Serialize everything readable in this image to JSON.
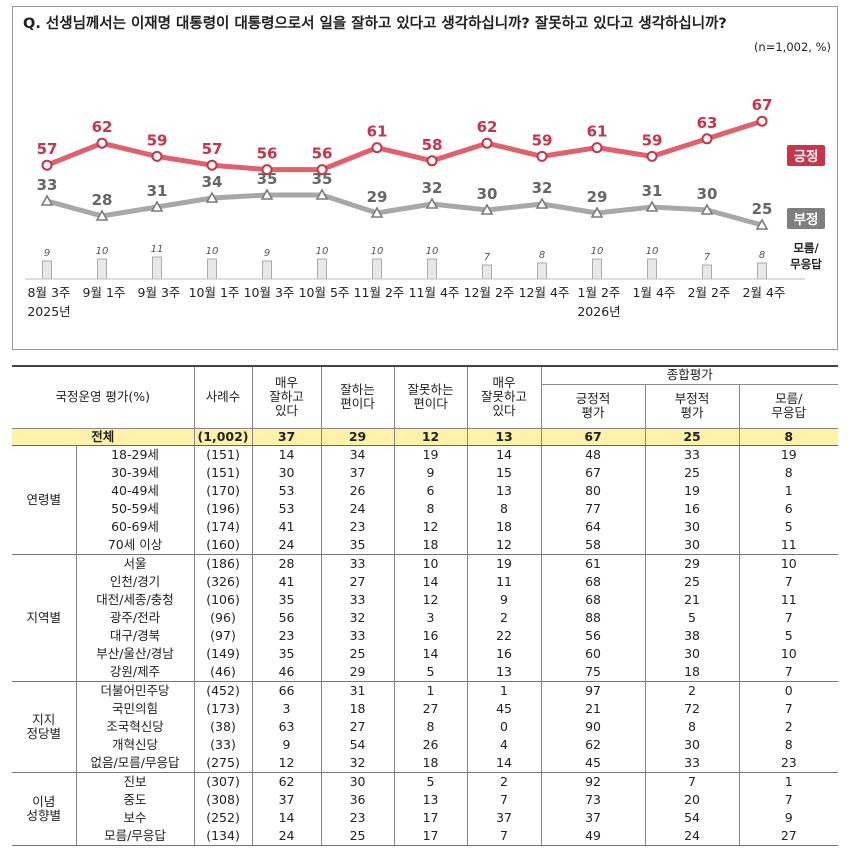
{
  "question": "Q. 선생님께서는 이재명 대통령이 대통령으로서 일을 잘하고 있다고 생각하십니까? 잘못하고 있다고 생각하십니까?",
  "note": "(n=1,002, %)",
  "colors": {
    "positive": "#c8344a",
    "positive_line": "#e0606e",
    "negative": "#7a7a7a",
    "negative_line": "#a8a8a8",
    "bar": "#e8e8e8",
    "bar_border": "#9a9a9a",
    "highlight": "#fff2a8"
  },
  "chart_data": {
    "type": "line",
    "title": "Q. 선생님께서는 이재명 대통령이 대통령으로서 일을 잘하고 있다고 생각하십니까? 잘못하고 있다고 생각하십니까?",
    "unit_note": "(n=1,002, %)",
    "categories": [
      "8월 3주",
      "9월 1주",
      "9월 3주",
      "10월 1주",
      "10월 3주",
      "10월 5주",
      "11월 2주",
      "11월 4주",
      "12월 2주",
      "12월 4주",
      "1월 2주",
      "1월 4주",
      "2월 2주",
      "2월 4주"
    ],
    "year_labels": [
      {
        "index": 0,
        "label": "2025년"
      },
      {
        "index": 10,
        "label": "2026년"
      }
    ],
    "series": [
      {
        "name": "긍정",
        "values": [
          57,
          62,
          59,
          57,
          56,
          56,
          61,
          58,
          62,
          59,
          61,
          59,
          63,
          67
        ]
      },
      {
        "name": "부정",
        "values": [
          33,
          28,
          31,
          34,
          35,
          35,
          29,
          32,
          30,
          32,
          29,
          31,
          30,
          25
        ]
      },
      {
        "name": "모름/무응답",
        "type": "bar",
        "values": [
          9,
          10,
          11,
          10,
          9,
          10,
          10,
          10,
          7,
          8,
          10,
          10,
          7,
          8
        ]
      }
    ],
    "legend": [
      "긍정",
      "부정",
      "모름/무응답"
    ]
  },
  "legend_dk": [
    "모름/",
    "무응답"
  ],
  "table": {
    "header": {
      "item": "국정운영 평가(%)",
      "n": "사례수",
      "c1": [
        "매우",
        "잘하고",
        "있다"
      ],
      "c2": [
        "잘하는",
        "편이다"
      ],
      "c3": [
        "잘못하는",
        "편이다"
      ],
      "c4": [
        "매우",
        "잘못하고",
        "있다"
      ],
      "summary": "종합평가",
      "s1": [
        "긍정적",
        "평가"
      ],
      "s2": [
        "부정적",
        "평가"
      ],
      "s3": [
        "모름/",
        "무응답"
      ]
    },
    "total": {
      "label": "전체",
      "n": "(1,002)",
      "vals": [
        "37",
        "29",
        "12",
        "13",
        "67",
        "25",
        "8"
      ]
    },
    "groups": [
      {
        "name": "연령별",
        "rows": [
          {
            "label": "18-29세",
            "n": "(151)",
            "vals": [
              "14",
              "34",
              "19",
              "14",
              "48",
              "33",
              "19"
            ]
          },
          {
            "label": "30-39세",
            "n": "(151)",
            "vals": [
              "30",
              "37",
              "9",
              "15",
              "67",
              "25",
              "8"
            ]
          },
          {
            "label": "40-49세",
            "n": "(170)",
            "vals": [
              "53",
              "26",
              "6",
              "13",
              "80",
              "19",
              "1"
            ]
          },
          {
            "label": "50-59세",
            "n": "(196)",
            "vals": [
              "53",
              "24",
              "8",
              "8",
              "77",
              "16",
              "6"
            ]
          },
          {
            "label": "60-69세",
            "n": "(174)",
            "vals": [
              "41",
              "23",
              "12",
              "18",
              "64",
              "30",
              "5"
            ]
          },
          {
            "label": "70세 이상",
            "n": "(160)",
            "vals": [
              "24",
              "35",
              "18",
              "12",
              "58",
              "30",
              "11"
            ]
          }
        ]
      },
      {
        "name": "지역별",
        "rows": [
          {
            "label": "서울",
            "n": "(186)",
            "vals": [
              "28",
              "33",
              "10",
              "19",
              "61",
              "29",
              "10"
            ]
          },
          {
            "label": "인천/경기",
            "n": "(326)",
            "vals": [
              "41",
              "27",
              "14",
              "11",
              "68",
              "25",
              "7"
            ]
          },
          {
            "label": "대전/세종/충청",
            "n": "(106)",
            "vals": [
              "35",
              "33",
              "12",
              "9",
              "68",
              "21",
              "11"
            ]
          },
          {
            "label": "광주/전라",
            "n": "(96)",
            "vals": [
              "56",
              "32",
              "3",
              "2",
              "88",
              "5",
              "7"
            ]
          },
          {
            "label": "대구/경북",
            "n": "(97)",
            "vals": [
              "23",
              "33",
              "16",
              "22",
              "56",
              "38",
              "5"
            ]
          },
          {
            "label": "부산/울산/경남",
            "n": "(149)",
            "vals": [
              "35",
              "25",
              "14",
              "16",
              "60",
              "30",
              "10"
            ]
          },
          {
            "label": "강원/제주",
            "n": "(46)",
            "vals": [
              "46",
              "29",
              "5",
              "13",
              "75",
              "18",
              "7"
            ]
          }
        ]
      },
      {
        "name": "지지 정당별",
        "rows": [
          {
            "label": "더불어민주당",
            "n": "(452)",
            "vals": [
              "66",
              "31",
              "1",
              "1",
              "97",
              "2",
              "0"
            ]
          },
          {
            "label": "국민의힘",
            "n": "(173)",
            "vals": [
              "3",
              "18",
              "27",
              "45",
              "21",
              "72",
              "7"
            ]
          },
          {
            "label": "조국혁신당",
            "n": "(38)",
            "vals": [
              "63",
              "27",
              "8",
              "0",
              "90",
              "8",
              "2"
            ]
          },
          {
            "label": "개혁신당",
            "n": "(33)",
            "vals": [
              "9",
              "54",
              "26",
              "4",
              "62",
              "30",
              "8"
            ]
          },
          {
            "label": "없음/모름/무응답",
            "n": "(275)",
            "vals": [
              "12",
              "32",
              "18",
              "14",
              "45",
              "33",
              "23"
            ]
          }
        ]
      },
      {
        "name": "이념 성향별",
        "rows": [
          {
            "label": "진보",
            "n": "(307)",
            "vals": [
              "62",
              "30",
              "5",
              "2",
              "92",
              "7",
              "1"
            ]
          },
          {
            "label": "중도",
            "n": "(308)",
            "vals": [
              "37",
              "36",
              "13",
              "7",
              "73",
              "20",
              "7"
            ]
          },
          {
            "label": "보수",
            "n": "(252)",
            "vals": [
              "14",
              "23",
              "17",
              "37",
              "37",
              "54",
              "9"
            ]
          },
          {
            "label": "모름/무응답",
            "n": "(134)",
            "vals": [
              "24",
              "25",
              "17",
              "7",
              "49",
              "24",
              "27"
            ]
          }
        ]
      }
    ]
  }
}
